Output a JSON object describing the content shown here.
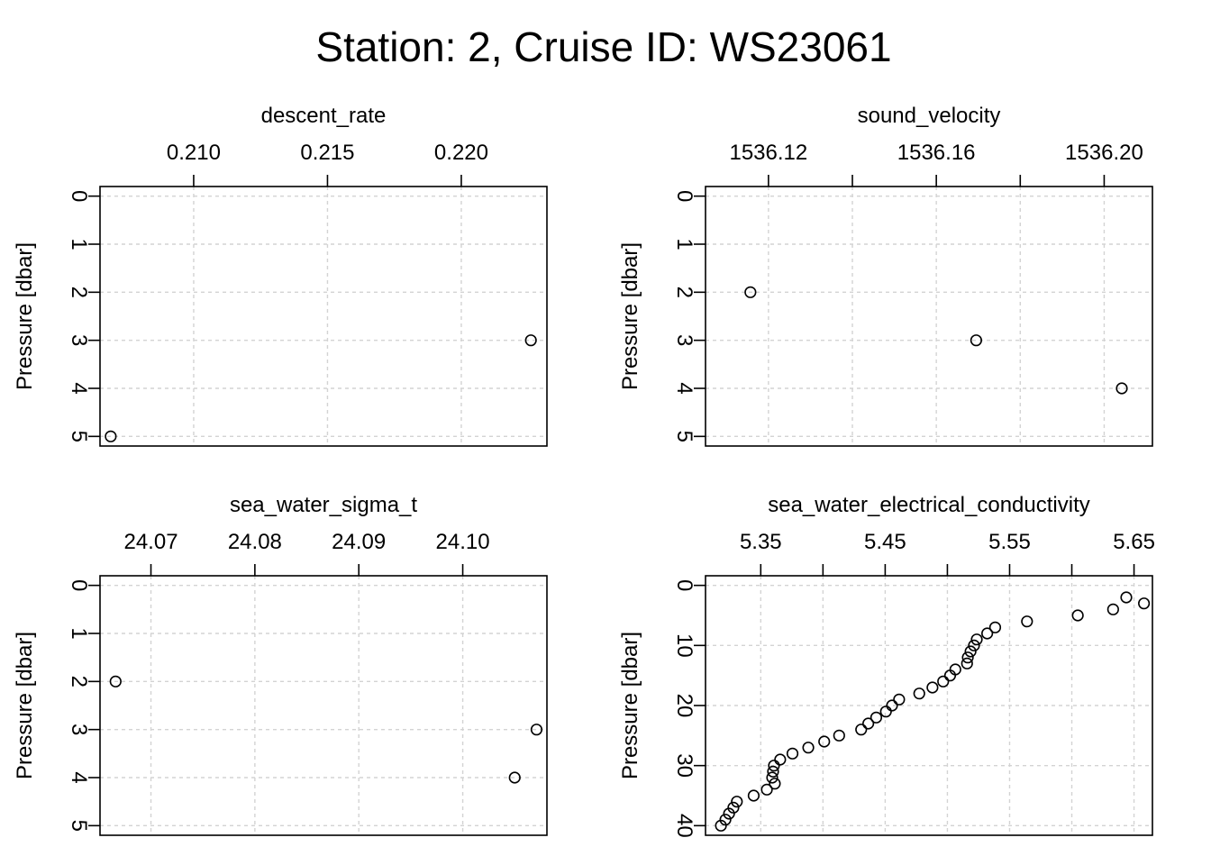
{
  "title": "Station: 2, Cruise ID: WS23061",
  "colors": {
    "points": "#000000",
    "grid": "#d3d3d3",
    "frame": "#000000",
    "background": "#ffffff"
  },
  "chart_data": [
    {
      "type": "scatter",
      "title": "descent_rate",
      "xlabel": "descent_rate",
      "ylabel": "Pressure [dbar]",
      "y_reversed": true,
      "x_axis_position": "top",
      "grid": true,
      "xlim": [
        0.2065,
        0.2232
      ],
      "ylim": [
        5.2,
        -0.2
      ],
      "xticks": [
        0.21,
        0.215,
        0.22
      ],
      "xtick_labels": [
        "0.210",
        "0.215",
        "0.220"
      ],
      "yticks": [
        0,
        1,
        2,
        3,
        4,
        5
      ],
      "ytick_labels": [
        "0",
        "1",
        "2",
        "3",
        "4",
        "5"
      ],
      "points": [
        {
          "x": 0.2226,
          "y": 3
        },
        {
          "x": 0.2069,
          "y": 5
        }
      ]
    },
    {
      "type": "scatter",
      "title": "sound_velocity",
      "xlabel": "sound_velocity",
      "ylabel": "Pressure [dbar]",
      "y_reversed": true,
      "x_axis_position": "top",
      "grid": true,
      "xlim": [
        1536.105,
        1536.2115
      ],
      "ylim": [
        5.2,
        -0.2
      ],
      "xticks": [
        1536.12,
        1536.14,
        1536.16,
        1536.18,
        1536.2
      ],
      "xtick_labels": [
        "1536.12",
        "",
        "1536.16",
        "",
        "1536.20"
      ],
      "yticks": [
        0,
        1,
        2,
        3,
        4,
        5
      ],
      "ytick_labels": [
        "0",
        "1",
        "2",
        "3",
        "4",
        "5"
      ],
      "points": [
        {
          "x": 1536.1157,
          "y": 2
        },
        {
          "x": 1536.1695,
          "y": 3
        },
        {
          "x": 1536.2042,
          "y": 4
        }
      ]
    },
    {
      "type": "scatter",
      "title": "sea_water_sigma_t",
      "xlabel": "sea_water_sigma_t",
      "ylabel": "Pressure [dbar]",
      "y_reversed": true,
      "x_axis_position": "top",
      "grid": true,
      "xlim": [
        24.0651,
        24.1081
      ],
      "ylim": [
        5.2,
        -0.2
      ],
      "xticks": [
        24.07,
        24.08,
        24.09,
        24.1
      ],
      "xtick_labels": [
        "24.07",
        "24.08",
        "24.09",
        "24.10"
      ],
      "yticks": [
        0,
        1,
        2,
        3,
        4,
        5
      ],
      "ytick_labels": [
        "0",
        "1",
        "2",
        "3",
        "4",
        "5"
      ],
      "points": [
        {
          "x": 24.0666,
          "y": 2
        },
        {
          "x": 24.1071,
          "y": 3
        },
        {
          "x": 24.105,
          "y": 4
        }
      ]
    },
    {
      "type": "scatter",
      "title": "sea_water_electrical_conductivity",
      "xlabel": "sea_water_electrical_conductivity",
      "ylabel": "Pressure [dbar]",
      "y_reversed": true,
      "x_axis_position": "top",
      "grid": true,
      "xlim": [
        5.3056,
        5.6648
      ],
      "ylim": [
        41.6,
        -1.6
      ],
      "xticks": [
        5.35,
        5.4,
        5.45,
        5.5,
        5.55,
        5.6,
        5.65
      ],
      "xtick_labels": [
        "5.35",
        "",
        "5.45",
        "",
        "5.55",
        "",
        "5.65"
      ],
      "yticks": [
        0,
        10,
        20,
        30,
        40
      ],
      "ytick_labels": [
        "0",
        "10",
        "20",
        "30",
        "40"
      ],
      "points": [
        {
          "x": 5.6438,
          "y": 2
        },
        {
          "x": 5.658,
          "y": 3
        },
        {
          "x": 5.6332,
          "y": 4
        },
        {
          "x": 5.6048,
          "y": 5
        },
        {
          "x": 5.564,
          "y": 6
        },
        {
          "x": 5.5384,
          "y": 7
        },
        {
          "x": 5.532,
          "y": 8
        },
        {
          "x": 5.5236,
          "y": 9
        },
        {
          "x": 5.5214,
          "y": 10
        },
        {
          "x": 5.5186,
          "y": 11
        },
        {
          "x": 5.5164,
          "y": 12
        },
        {
          "x": 5.5158,
          "y": 13
        },
        {
          "x": 5.5064,
          "y": 14
        },
        {
          "x": 5.5022,
          "y": 15
        },
        {
          "x": 5.4966,
          "y": 16
        },
        {
          "x": 5.488,
          "y": 17
        },
        {
          "x": 5.4774,
          "y": 18
        },
        {
          "x": 5.4612,
          "y": 19
        },
        {
          "x": 5.4555,
          "y": 20
        },
        {
          "x": 5.4506,
          "y": 21
        },
        {
          "x": 5.4428,
          "y": 22
        },
        {
          "x": 5.4364,
          "y": 23
        },
        {
          "x": 5.4307,
          "y": 24
        },
        {
          "x": 5.413,
          "y": 25
        },
        {
          "x": 5.401,
          "y": 26
        },
        {
          "x": 5.3882,
          "y": 27
        },
        {
          "x": 5.3755,
          "y": 28
        },
        {
          "x": 5.3656,
          "y": 29
        },
        {
          "x": 5.3606,
          "y": 30
        },
        {
          "x": 5.3599,
          "y": 31
        },
        {
          "x": 5.3592,
          "y": 32
        },
        {
          "x": 5.3613,
          "y": 33
        },
        {
          "x": 5.3549,
          "y": 34
        },
        {
          "x": 5.3443,
          "y": 35
        },
        {
          "x": 5.3308,
          "y": 36
        },
        {
          "x": 5.328,
          "y": 37
        },
        {
          "x": 5.3245,
          "y": 38
        },
        {
          "x": 5.3216,
          "y": 39
        },
        {
          "x": 5.318,
          "y": 40
        }
      ]
    }
  ]
}
